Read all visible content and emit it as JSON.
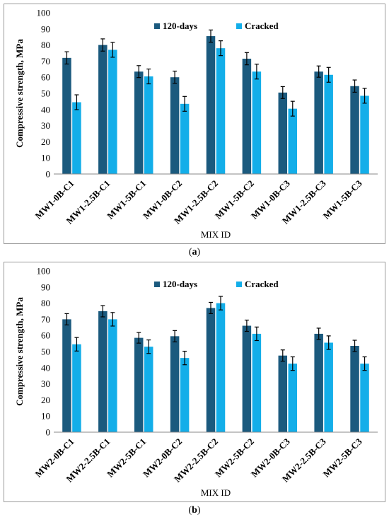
{
  "chart_data": [
    {
      "type": "bar",
      "panel_label": "a",
      "categories": [
        "MW1-0B-C1",
        "MW1-2.5B-C1",
        "MW1-5B-C1",
        "MW1-0B-C2",
        "MW1-2.5B-C2",
        "MW1-5B-C2",
        "MW1-0B-C3",
        "MW1-2.5B-C3",
        "MW1-5B-C3"
      ],
      "series": [
        {
          "name": "120-days",
          "color": "#1b5a7e",
          "values": [
            72,
            80,
            63.5,
            60,
            85.5,
            71.5,
            50.5,
            63.5,
            54.5
          ],
          "errors": [
            3.8,
            3.8,
            3.7,
            3.8,
            3.8,
            3.8,
            3.7,
            3.5,
            3.8
          ]
        },
        {
          "name": "Cracked",
          "color": "#13aee9",
          "values": [
            44.5,
            77,
            60.5,
            43.5,
            78,
            63.5,
            40.5,
            61.5,
            48.5
          ],
          "errors": [
            4.6,
            4.6,
            4.6,
            4.6,
            4.6,
            4.6,
            4.6,
            4.6,
            4.6
          ]
        }
      ],
      "xlabel": "MIX ID",
      "ylabel": "Compressive strength, MPa",
      "ylim": [
        0,
        100
      ],
      "yticks": [
        0,
        10,
        20,
        30,
        40,
        50,
        60,
        70,
        80,
        90,
        100
      ],
      "grid": false,
      "legend": "top"
    },
    {
      "type": "bar",
      "panel_label": "b",
      "categories": [
        "MW2-0B-C1",
        "MW2-2.5B-C1",
        "MW2-5B-C1",
        "MW2-0B-C2",
        "MW2-2.5B-C2",
        "MW2-5B-C2",
        "MW2-0B-C3",
        "MW2-2.5B-C3",
        "MW2-5B-C3"
      ],
      "series": [
        {
          "name": "120-days",
          "color": "#1b5a7e",
          "values": [
            70,
            75,
            58.5,
            59.5,
            77,
            66,
            47.5,
            61,
            53.5
          ],
          "errors": [
            3.5,
            3.5,
            3.3,
            3.5,
            3.5,
            3.5,
            3.5,
            3.5,
            3.5
          ]
        },
        {
          "name": "Cracked",
          "color": "#13aee9",
          "values": [
            54.5,
            70,
            53,
            46,
            80,
            61,
            42.5,
            55.5,
            42.5
          ],
          "errors": [
            4.2,
            4.2,
            4.2,
            4.2,
            4.2,
            4.2,
            4.2,
            4.2,
            4.2
          ]
        }
      ],
      "xlabel": "MIX ID",
      "ylabel": "Compressive strength, MPa",
      "ylim": [
        0,
        100
      ],
      "yticks": [
        0,
        10,
        20,
        30,
        40,
        50,
        60,
        70,
        80,
        90,
        100
      ],
      "grid": false,
      "legend": "top"
    }
  ],
  "captions": {
    "a_open": "(",
    "a_letter": "a",
    "a_close": ")",
    "b_open": "(",
    "b_letter": "b",
    "b_close": ")"
  }
}
